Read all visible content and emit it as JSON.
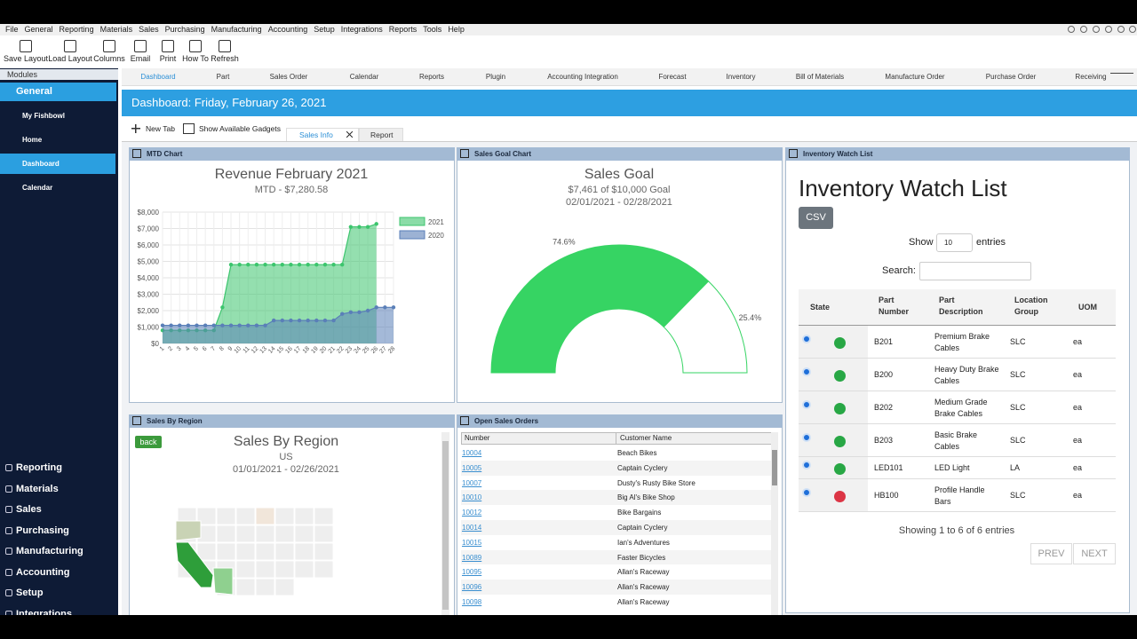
{
  "menu": [
    "File",
    "General",
    "Reporting",
    "Materials",
    "Sales",
    "Purchasing",
    "Manufacturing",
    "Accounting",
    "Setup",
    "Integrations",
    "Reports",
    "Tools",
    "Help"
  ],
  "toolbar": [
    "Save Layout",
    "Load Layout",
    "Columns",
    "Email",
    "Print",
    "How To",
    "Refresh"
  ],
  "sidebar": {
    "header": "Modules",
    "group": "General",
    "items": [
      "My Fishbowl",
      "Home",
      "Dashboard",
      "Calendar"
    ],
    "active": 2,
    "modules": [
      "Reporting",
      "Materials",
      "Sales",
      "Purchasing",
      "Manufacturing",
      "Accounting",
      "Setup",
      "Integrations"
    ]
  },
  "tabs": {
    "items": [
      "Dashboard",
      "Part",
      "Sales Order",
      "Calendar",
      "Reports",
      "Plugin",
      "Accounting Integration",
      "Forecast",
      "Inventory",
      "Bill of Materials",
      "Manufacture Order",
      "Purchase Order",
      "Receiving"
    ],
    "active": 0
  },
  "header": "Dashboard: Friday, February 26, 2021",
  "subtabs": {
    "actions": [
      "New Tab",
      "Show Available Gadgets"
    ],
    "tabs": [
      "Sales Info",
      "Report"
    ],
    "active": 0
  },
  "chart_data": [
    {
      "type": "line",
      "panel": "MTD Chart",
      "title": "Revenue February 2021",
      "subtitle": "MTD - $7,280.58",
      "categories": [
        "1",
        "2",
        "3",
        "4",
        "5",
        "6",
        "7",
        "8",
        "9",
        "10",
        "11",
        "12",
        "13",
        "14",
        "15",
        "16",
        "17",
        "18",
        "19",
        "20",
        "21",
        "22",
        "23",
        "24",
        "25",
        "26",
        "27",
        "28"
      ],
      "series": [
        {
          "name": "2021",
          "color": "#3cc56d",
          "values": [
            800,
            800,
            800,
            800,
            800,
            800,
            800,
            2200,
            4800,
            4800,
            4800,
            4800,
            4800,
            4800,
            4800,
            4800,
            4800,
            4800,
            4800,
            4800,
            4800,
            4800,
            7100,
            7100,
            7100,
            7280.58,
            null,
            null
          ]
        },
        {
          "name": "2020",
          "color": "#5a7fb8",
          "values": [
            1100,
            1100,
            1100,
            1100,
            1100,
            1100,
            1100,
            1100,
            1100,
            1100,
            1100,
            1100,
            1100,
            1400,
            1400,
            1400,
            1400,
            1400,
            1400,
            1400,
            1400,
            1800,
            1900,
            1900,
            2000,
            2200,
            2200,
            2200
          ]
        }
      ],
      "ylim": [
        0,
        8000
      ],
      "yticks": [
        {
          "value": 0,
          "label": "$0"
        },
        {
          "value": 1000,
          "label": "$1,000"
        },
        {
          "value": 2000,
          "label": "$2,000"
        },
        {
          "value": 3000,
          "label": "$3,000"
        },
        {
          "value": 4000,
          "label": "$4,000"
        },
        {
          "value": 5000,
          "label": "$5,000"
        },
        {
          "value": 6000,
          "label": "$6,000"
        },
        {
          "value": 7000,
          "label": "$7,000"
        },
        {
          "value": 8000,
          "label": "$8,000"
        }
      ],
      "grid": true,
      "legend": "top-right"
    },
    {
      "type": "gauge",
      "panel": "Sales Goal Chart",
      "title": "Sales Goal",
      "subtitle": [
        "$7,461 of $10,000 Goal",
        "02/01/2021 - 02/28/2021"
      ],
      "values": [
        74.6,
        25.4
      ],
      "value_labels": [
        "74.6%",
        "25.4%"
      ],
      "colors": [
        "#36d463",
        "#ffffff"
      ],
      "outline": "#36d463"
    }
  ],
  "region": {
    "panel": "Sales By Region",
    "button": "back",
    "title": "Sales By Region",
    "subtitle": [
      "US",
      "01/01/2021 - 02/26/2021"
    ]
  },
  "orders": {
    "panel": "Open Sales Orders",
    "columns": [
      "Number",
      "Customer Name"
    ],
    "rows": [
      [
        "10004",
        "Beach Bikes"
      ],
      [
        "10005",
        "Captain Cyclery"
      ],
      [
        "10007",
        "Dusty's Rusty Bike Store"
      ],
      [
        "10010",
        "Big Al's Bike Shop"
      ],
      [
        "10012",
        "Bike Bargains"
      ],
      [
        "10014",
        "Captain Cyclery"
      ],
      [
        "10015",
        "Ian's Adventures"
      ],
      [
        "10089",
        "Faster Bicycles"
      ],
      [
        "10095",
        "Allan's Raceway"
      ],
      [
        "10096",
        "Allan's Raceway"
      ],
      [
        "10098",
        "Allan's Raceway"
      ]
    ]
  },
  "inventory": {
    "panel": "Inventory Watch List",
    "title": "Inventory Watch List",
    "button": "CSV",
    "show": "Show",
    "page_size": "10",
    "entries": "entries",
    "search": "Search:",
    "columns": [
      "State",
      "Part Number",
      "Part Description",
      "Location Group",
      "UOM"
    ],
    "rows": [
      {
        "state": "#28a745",
        "part": "B201",
        "description": "Premium Brake Cables",
        "location": "SLC",
        "uom": "ea"
      },
      {
        "state": "#28a745",
        "part": "B200",
        "description": "Heavy Duty Brake Cables",
        "location": "SLC",
        "uom": "ea"
      },
      {
        "state": "#28a745",
        "part": "B202",
        "description": "Medium Grade Brake Cables",
        "location": "SLC",
        "uom": "ea"
      },
      {
        "state": "#28a745",
        "part": "B203",
        "description": "Basic Brake Cables",
        "location": "SLC",
        "uom": "ea"
      },
      {
        "state": "#28a745",
        "part": "LED101",
        "description": "LED Light",
        "location": "LA",
        "uom": "ea"
      },
      {
        "state": "#dc3545",
        "part": "HB100",
        "description": "Profile Handle Bars",
        "location": "SLC",
        "uom": "ea"
      }
    ],
    "footer": "Showing 1 to 6 of 6 entries",
    "prev": "PREV",
    "next": "NEXT"
  }
}
